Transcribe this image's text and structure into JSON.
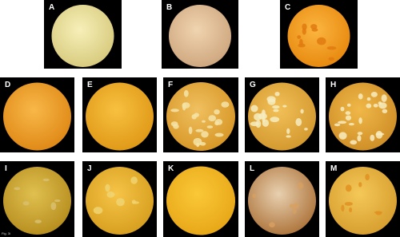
{
  "panels": [
    {
      "label": "A"
    },
    {
      "label": "B"
    },
    {
      "label": "C"
    },
    {
      "label": "D"
    },
    {
      "label": "E"
    },
    {
      "label": "F"
    },
    {
      "label": "G"
    },
    {
      "label": "H"
    },
    {
      "label": "I"
    },
    {
      "label": "J"
    },
    {
      "label": "K"
    },
    {
      "label": "L"
    },
    {
      "label": "M"
    }
  ],
  "caption": "Fig. 3i"
}
